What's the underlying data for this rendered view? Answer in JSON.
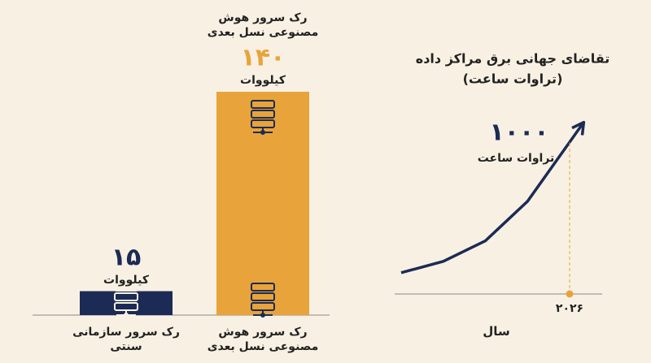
{
  "chart_data": [
    {
      "type": "bar",
      "categories": [
        "رک سرور سازمانی سنتی",
        "رک سرور هوش مصنوعی نسل بعدی"
      ],
      "values": [
        15,
        140
      ],
      "value_labels": [
        "۱۵",
        "۱۴۰"
      ],
      "unit": "کیلووات",
      "colors": [
        "#1c2b55",
        "#e8a33a"
      ]
    },
    {
      "type": "line",
      "title": "تقاضای جهانی برق مراکز داده",
      "subtitle": "(تراوات ساعت)",
      "categories": [
        null,
        null,
        null,
        null,
        "۲۰۲۶"
      ],
      "values": [
        140,
        215,
        350,
        610,
        1000
      ],
      "value_labels": [
        null,
        null,
        null,
        null,
        "۱۰۰۰"
      ],
      "unit": "تراوات ساعت",
      "x_label": "سال",
      "color": "#1c2b55",
      "highlight_color": "#e8a33a"
    }
  ]
}
